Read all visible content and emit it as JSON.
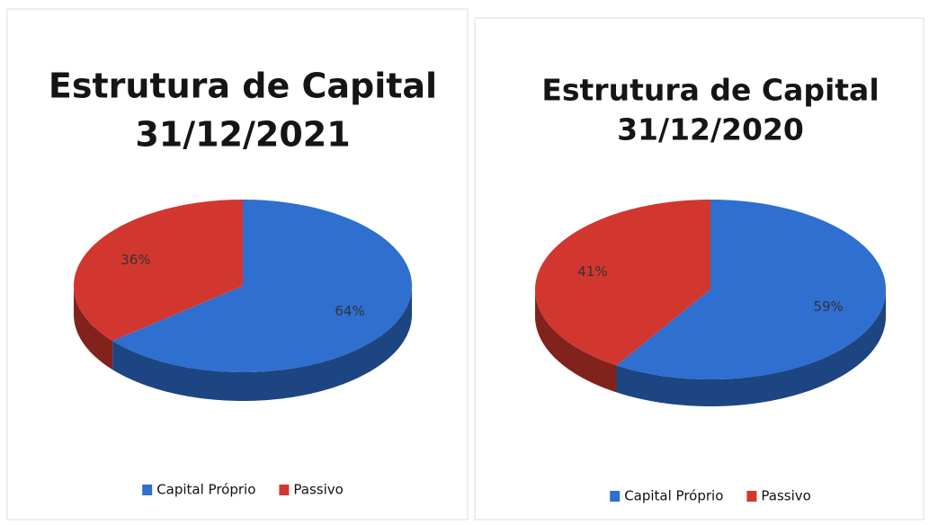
{
  "chart_data": [
    {
      "type": "pie",
      "title": [
        "Estrutura de Capital",
        "31/12/2021"
      ],
      "categories": [
        "Capital Próprio",
        "Passivo"
      ],
      "values": [
        64,
        36
      ],
      "value_labels": [
        "64%",
        "36%"
      ],
      "colors": [
        "#2e6fd0",
        "#d2372f"
      ]
    },
    {
      "type": "pie",
      "title": [
        "Estrutura de Capital",
        "31/12/2020"
      ],
      "categories": [
        "Capital Próprio",
        "Passivo"
      ],
      "values": [
        59,
        41
      ],
      "value_labels": [
        "59%",
        "41%"
      ],
      "colors": [
        "#2e6fd0",
        "#d2372f"
      ]
    }
  ]
}
